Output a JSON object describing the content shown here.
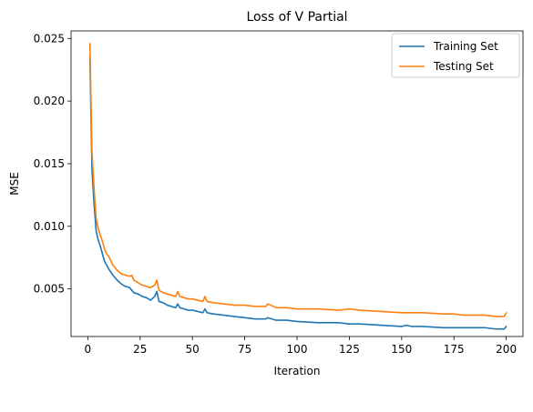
{
  "chart_data": {
    "type": "line",
    "title": "Loss of V Partial",
    "xlabel": "Iteration",
    "ylabel": "MSE",
    "xlim": [
      -8,
      208
    ],
    "ylim": [
      0.0012,
      0.0256
    ],
    "x_ticks": [
      0,
      25,
      50,
      75,
      100,
      125,
      150,
      175,
      200
    ],
    "x_tick_labels": [
      "0",
      "25",
      "50",
      "75",
      "100",
      "125",
      "150",
      "175",
      "200"
    ],
    "y_ticks": [
      0.005,
      0.01,
      0.015,
      0.02,
      0.025
    ],
    "y_tick_labels": [
      "0.005",
      "0.010",
      "0.015",
      "0.020",
      "0.025"
    ],
    "grid": false,
    "legend_position": "top-right",
    "series": [
      {
        "name": "Training Set",
        "color": "#1f77b4",
        "x": [
          1,
          2,
          3,
          4,
          5,
          6,
          7,
          8,
          9,
          10,
          12,
          14,
          16,
          18,
          20,
          22,
          24,
          26,
          28,
          30,
          32,
          33,
          34,
          36,
          38,
          40,
          42,
          43,
          44,
          46,
          48,
          50,
          55,
          56,
          57,
          60,
          65,
          70,
          75,
          80,
          85,
          86,
          90,
          95,
          100,
          110,
          120,
          125,
          130,
          140,
          150,
          152,
          155,
          160,
          170,
          175,
          180,
          190,
          195,
          199,
          200
        ],
        "values": [
          0.0236,
          0.0145,
          0.0118,
          0.0096,
          0.0089,
          0.0084,
          0.0078,
          0.0072,
          0.0069,
          0.0066,
          0.0061,
          0.0057,
          0.0054,
          0.0052,
          0.0051,
          0.0047,
          0.0046,
          0.0044,
          0.0043,
          0.0041,
          0.0044,
          0.0048,
          0.004,
          0.0039,
          0.0037,
          0.0036,
          0.0035,
          0.0038,
          0.0035,
          0.0034,
          0.0033,
          0.0033,
          0.0031,
          0.0034,
          0.0031,
          0.003,
          0.0029,
          0.0028,
          0.0027,
          0.0026,
          0.0026,
          0.0027,
          0.0025,
          0.0025,
          0.0024,
          0.0023,
          0.0023,
          0.0022,
          0.0022,
          0.0021,
          0.002,
          0.0021,
          0.002,
          0.002,
          0.0019,
          0.0019,
          0.0019,
          0.0019,
          0.0018,
          0.0018,
          0.002
        ]
      },
      {
        "name": "Testing Set",
        "color": "#ff7f0e",
        "x": [
          1,
          2,
          3,
          4,
          5,
          6,
          7,
          8,
          9,
          10,
          12,
          14,
          16,
          18,
          20,
          21,
          22,
          24,
          26,
          28,
          30,
          32,
          33,
          34,
          36,
          38,
          40,
          42,
          43,
          44,
          46,
          48,
          50,
          55,
          56,
          57,
          60,
          65,
          70,
          75,
          80,
          85,
          86,
          90,
          95,
          100,
          110,
          120,
          125,
          130,
          140,
          150,
          155,
          160,
          170,
          175,
          180,
          190,
          195,
          199,
          200
        ],
        "values": [
          0.0246,
          0.016,
          0.013,
          0.0106,
          0.0098,
          0.0093,
          0.0088,
          0.0082,
          0.0078,
          0.0076,
          0.0069,
          0.0065,
          0.0062,
          0.0061,
          0.006,
          0.0061,
          0.0057,
          0.0055,
          0.0053,
          0.0052,
          0.0051,
          0.0053,
          0.0057,
          0.0049,
          0.0047,
          0.0046,
          0.0045,
          0.0044,
          0.0048,
          0.0044,
          0.0043,
          0.0042,
          0.0042,
          0.004,
          0.0044,
          0.004,
          0.0039,
          0.0038,
          0.0037,
          0.0037,
          0.0036,
          0.0036,
          0.0038,
          0.0035,
          0.0035,
          0.0034,
          0.0034,
          0.0033,
          0.0034,
          0.0033,
          0.0032,
          0.0031,
          0.0031,
          0.0031,
          0.003,
          0.003,
          0.0029,
          0.0029,
          0.0028,
          0.0028,
          0.0031
        ]
      }
    ]
  }
}
